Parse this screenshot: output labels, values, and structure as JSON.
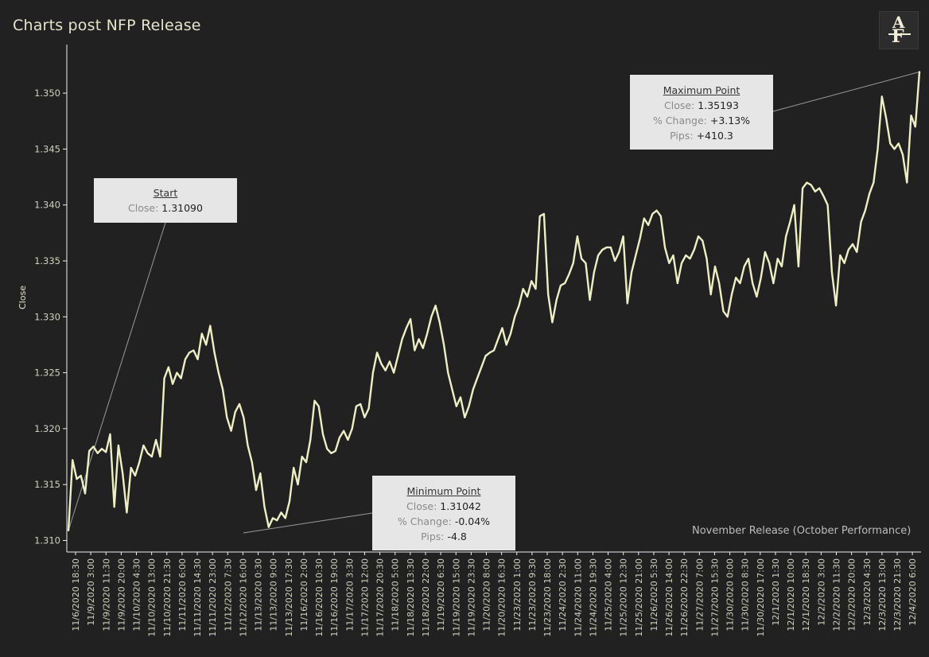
{
  "title": "Charts post NFP Release",
  "logo_text": "AF",
  "subtitle": "November Release (October Performance)",
  "colors": {
    "background": "#212121",
    "line": "#efefc6",
    "text": "#e6e4cc",
    "box": "#e6e6e6"
  },
  "annotations": {
    "start": {
      "title": "Start",
      "close_label": "Close:",
      "close": "1.31090"
    },
    "maximum": {
      "title": "Maximum Point",
      "close_label": "Close:",
      "close": "1.35193",
      "pct_label": "% Change:",
      "pct": "+3.13%",
      "pips_label": "Pips:",
      "pips": "+410.3"
    },
    "minimum": {
      "title": "Minimum Point",
      "close_label": "Close:",
      "close": "1.31042",
      "pct_label": "% Change:",
      "pct": "-0.04%",
      "pips_label": "Pips:",
      "pips": "-4.8"
    }
  },
  "chart_data": {
    "type": "line",
    "title": "Charts post NFP Release",
    "xlabel": "",
    "ylabel": "Close",
    "ylim": [
      1.3095,
      1.3525
    ],
    "yticks": [
      1.31,
      1.315,
      1.32,
      1.325,
      1.33,
      1.335,
      1.34,
      1.345,
      1.35
    ],
    "ytick_labels": [
      "1.310",
      "1.315",
      "1.320",
      "1.325",
      "1.330",
      "1.335",
      "1.340",
      "1.345",
      "1.350"
    ],
    "grid": false,
    "x_tick_labels": [
      "11/6/2020 18:30",
      "11/9/2020 3:00",
      "11/9/2020 11:30",
      "11/9/2020 20:00",
      "11/10/2020 4:30",
      "11/10/2020 13:00",
      "11/10/2020 21:30",
      "11/11/2020 6:00",
      "11/11/2020 14:30",
      "11/11/2020 23:00",
      "11/12/2020 7:30",
      "11/12/2020 16:00",
      "11/13/2020 0:30",
      "11/13/2020 9:00",
      "11/13/2020 17:30",
      "11/16/2020 2:00",
      "11/16/2020 10:30",
      "11/16/2020 19:00",
      "11/17/2020 3:30",
      "11/17/2020 12:00",
      "11/17/2020 20:30",
      "11/18/2020 5:00",
      "11/18/2020 13:30",
      "11/18/2020 22:00",
      "11/19/2020 6:30",
      "11/19/2020 15:00",
      "11/19/2020 23:30",
      "11/20/2020 8:00",
      "11/20/2020 16:30",
      "11/23/2020 1:00",
      "11/23/2020 9:30",
      "11/23/2020 18:00",
      "11/24/2020 2:30",
      "11/24/2020 11:00",
      "11/24/2020 19:30",
      "11/25/2020 4:00",
      "11/25/2020 12:30",
      "11/25/2020 21:00",
      "11/26/2020 5:30",
      "11/26/2020 14:00",
      "11/26/2020 22:30",
      "11/27/2020 7:00",
      "11/27/2020 15:30",
      "11/30/2020 0:00",
      "11/30/2020 8:30",
      "11/30/2020 17:00",
      "12/1/2020 1:30",
      "12/1/2020 10:00",
      "12/1/2020 18:30",
      "12/2/2020 3:00",
      "12/2/2020 11:30",
      "12/2/2020 20:00",
      "12/3/2020 4:30",
      "12/3/2020 13:00",
      "12/3/2020 21:30",
      "12/4/2020 6:00"
    ],
    "series": [
      {
        "values": [
          1.3109,
          1.3172,
          1.3155,
          1.3158,
          1.3142,
          1.318,
          1.3184,
          1.3178,
          1.3182,
          1.3179,
          1.3195,
          1.313,
          1.3185,
          1.316,
          1.3125,
          1.3165,
          1.3158,
          1.317,
          1.3185,
          1.3178,
          1.3175,
          1.319,
          1.3175,
          1.3245,
          1.3255,
          1.324,
          1.325,
          1.3245,
          1.3262,
          1.3268,
          1.327,
          1.3262,
          1.3285,
          1.3275,
          1.3292,
          1.3268,
          1.325,
          1.3235,
          1.321,
          1.3198,
          1.3215,
          1.3222,
          1.321,
          1.3185,
          1.317,
          1.3145,
          1.316,
          1.313,
          1.3112,
          1.312,
          1.3118,
          1.3125,
          1.312,
          1.3135,
          1.3165,
          1.315,
          1.3175,
          1.317,
          1.319,
          1.3225,
          1.322,
          1.3195,
          1.3182,
          1.3178,
          1.318,
          1.3192,
          1.3198,
          1.319,
          1.32,
          1.322,
          1.3222,
          1.321,
          1.3218,
          1.325,
          1.3268,
          1.3258,
          1.3252,
          1.326,
          1.325,
          1.3265,
          1.328,
          1.329,
          1.3298,
          1.327,
          1.328,
          1.3272,
          1.3285,
          1.33,
          1.331,
          1.3295,
          1.3275,
          1.325,
          1.3235,
          1.322,
          1.3228,
          1.321,
          1.322,
          1.3235,
          1.3245,
          1.3255,
          1.3265,
          1.3268,
          1.327,
          1.328,
          1.329,
          1.3275,
          1.3285,
          1.33,
          1.331,
          1.3325,
          1.3318,
          1.3332,
          1.3325,
          1.339,
          1.3392,
          1.332,
          1.3295,
          1.3315,
          1.3328,
          1.333,
          1.3338,
          1.3348,
          1.3372,
          1.3352,
          1.3348,
          1.3315,
          1.334,
          1.3355,
          1.336,
          1.3362,
          1.3362,
          1.335,
          1.3358,
          1.3372,
          1.3312,
          1.334,
          1.3355,
          1.337,
          1.3388,
          1.3382,
          1.3392,
          1.3395,
          1.339,
          1.3362,
          1.3348,
          1.3355,
          1.333,
          1.3348,
          1.3355,
          1.3352,
          1.336,
          1.3372,
          1.3368,
          1.3352,
          1.332,
          1.3345,
          1.333,
          1.3305,
          1.33,
          1.332,
          1.3335,
          1.333,
          1.3345,
          1.3352,
          1.333,
          1.3318,
          1.3335,
          1.3358,
          1.3348,
          1.333,
          1.3352,
          1.3345,
          1.3372,
          1.3385,
          1.34,
          1.3345,
          1.3415,
          1.342,
          1.3418,
          1.3412,
          1.3415,
          1.3408,
          1.34,
          1.334,
          1.331,
          1.3355,
          1.3348,
          1.336,
          1.3365,
          1.3358,
          1.3385,
          1.3395,
          1.341,
          1.342,
          1.345,
          1.3497,
          1.3478,
          1.3455,
          1.345,
          1.3455,
          1.3445,
          1.342,
          1.348,
          1.347,
          1.3519
        ]
      }
    ]
  }
}
